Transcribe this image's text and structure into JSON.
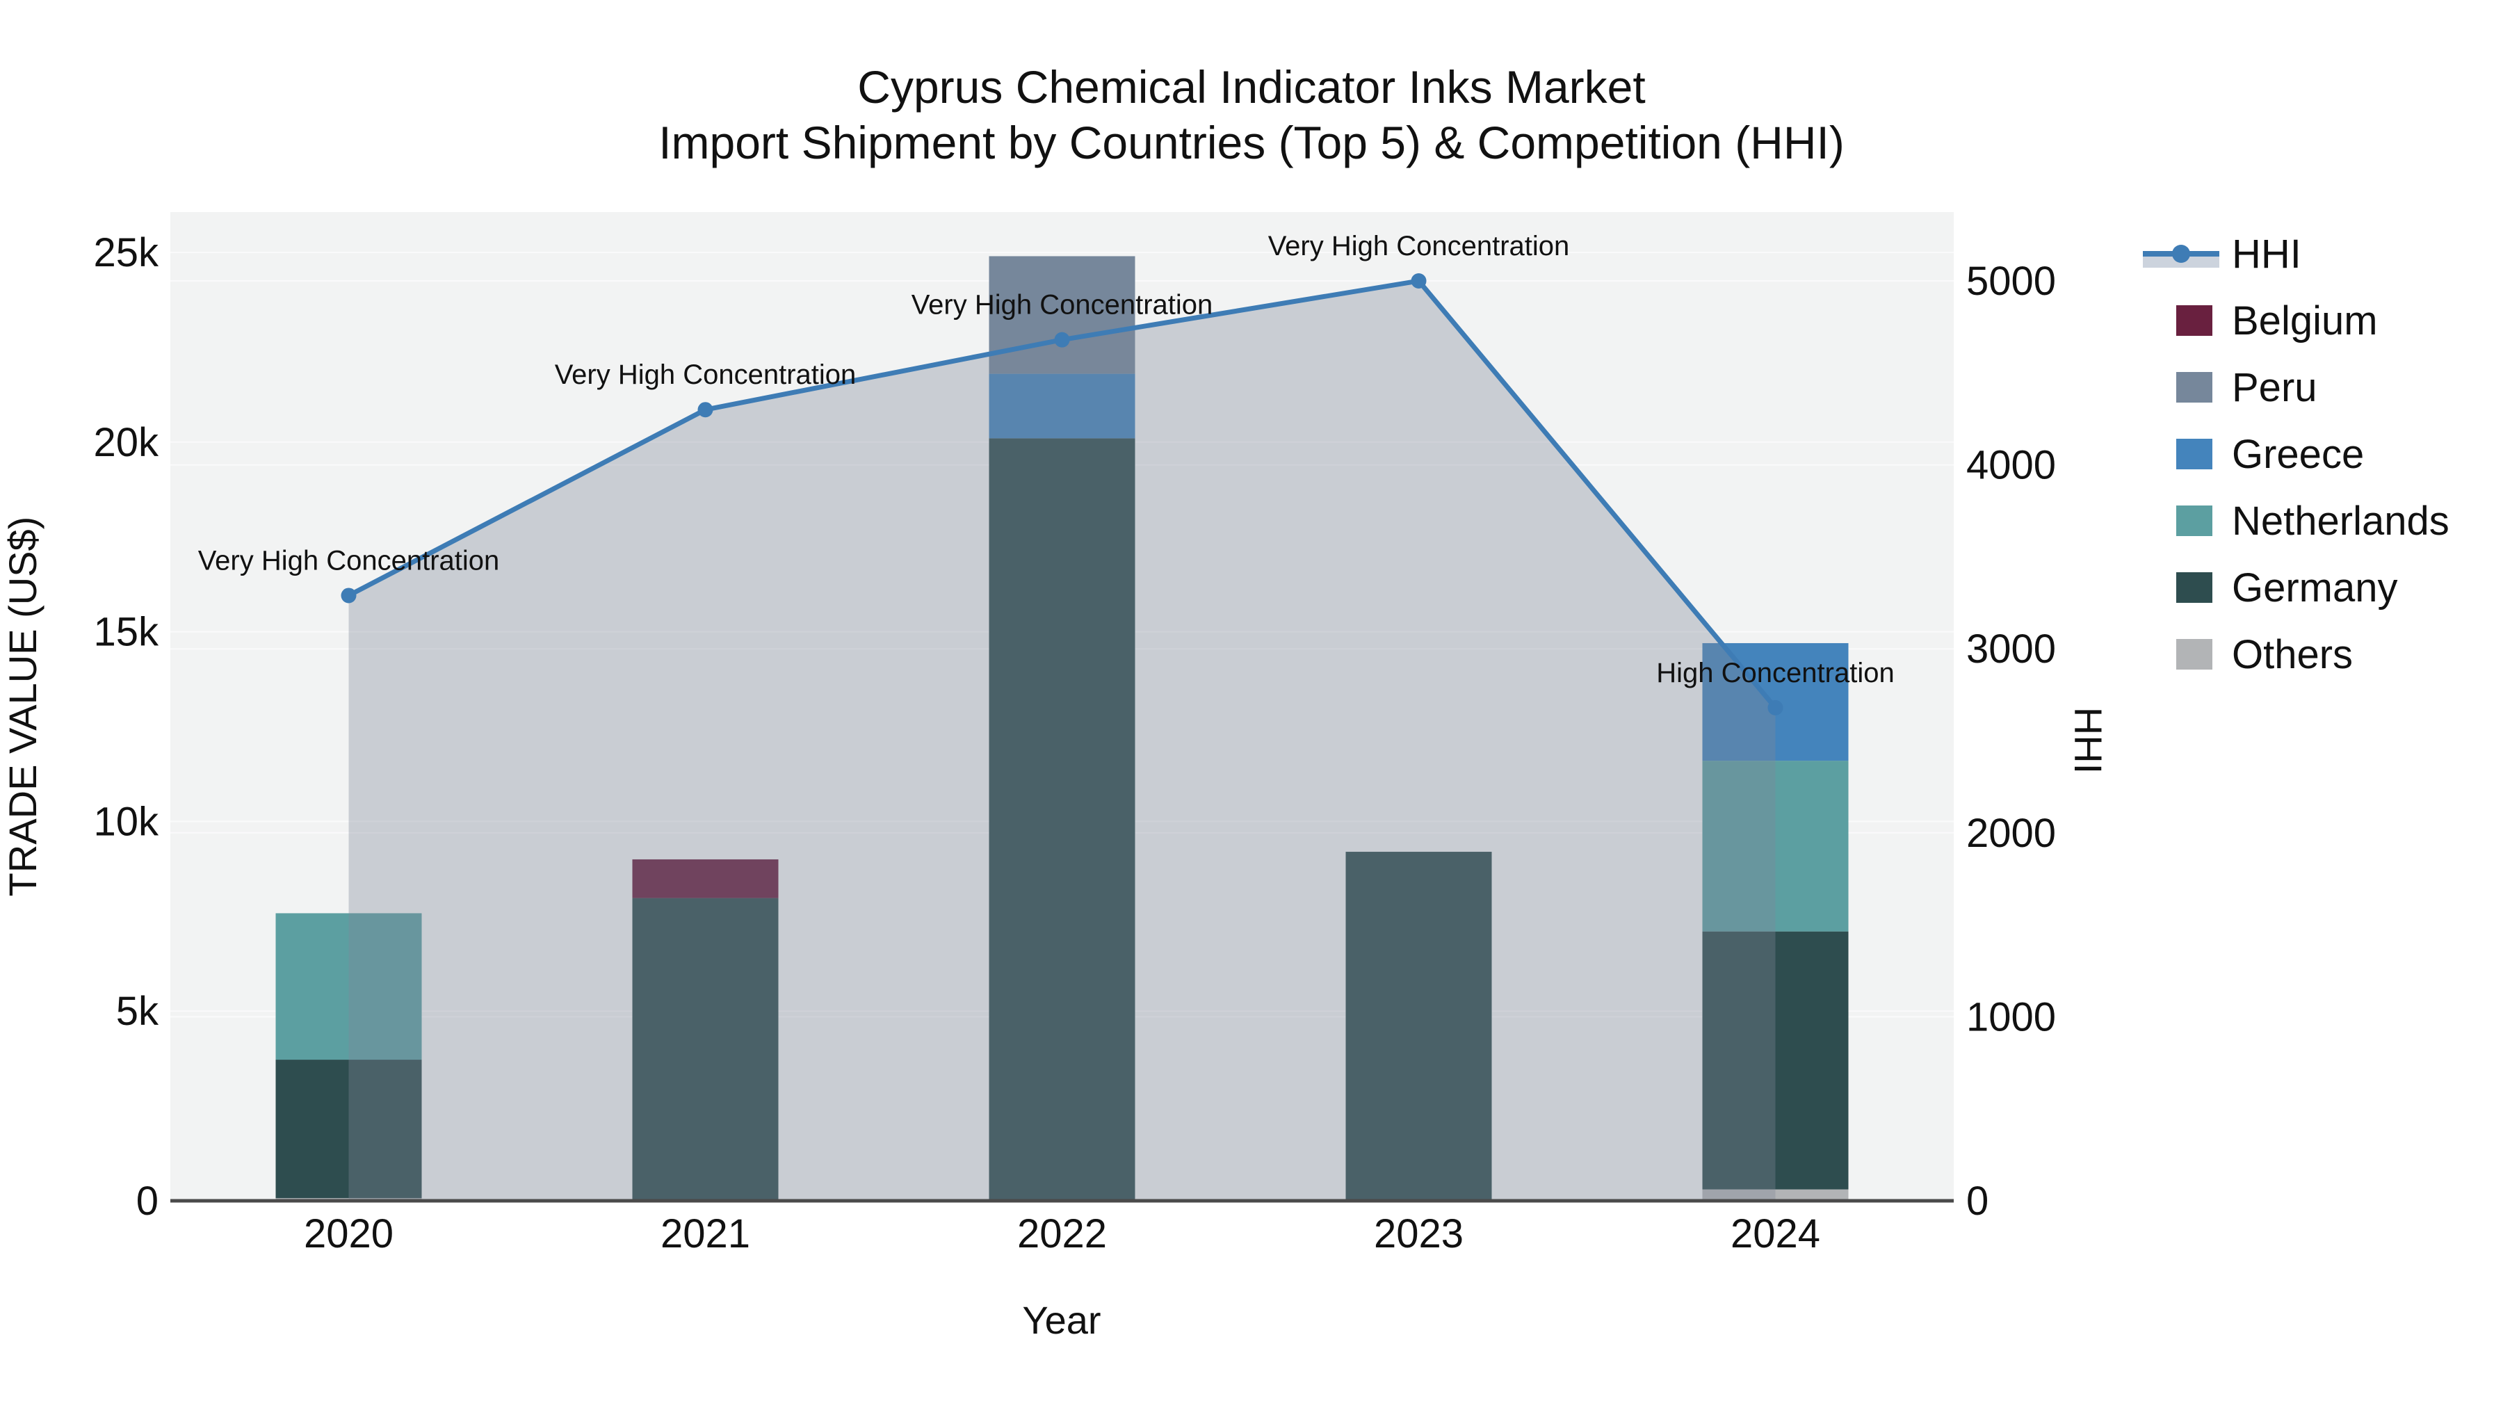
{
  "title": {
    "line1": "Cyprus Chemical Indicator Inks Market",
    "line2": "Import Shipment by Countries (Top 5) & Competition (HHI)"
  },
  "axes": {
    "x": {
      "title": "Year",
      "ticks": [
        "2020",
        "2021",
        "2022",
        "2023",
        "2024"
      ]
    },
    "y_left": {
      "title": "TRADE VALUE (US$)",
      "tick_labels": [
        "0",
        "5k",
        "10k",
        "15k",
        "20k",
        "25k"
      ],
      "tick_values": [
        0,
        5000,
        10000,
        15000,
        20000,
        25000
      ],
      "max": 25000
    },
    "y_right": {
      "title": "HHI",
      "tick_labels": [
        "0",
        "1000",
        "2000",
        "3000",
        "4000",
        "5000"
      ],
      "tick_values": [
        0,
        1000,
        2000,
        3000,
        4000,
        5000
      ],
      "max": 5000
    }
  },
  "legend": {
    "items": [
      {
        "label": "HHI",
        "type": "line"
      },
      {
        "label": "Belgium",
        "type": "swatch"
      },
      {
        "label": "Peru",
        "type": "swatch"
      },
      {
        "label": "Greece",
        "type": "swatch"
      },
      {
        "label": "Netherlands",
        "type": "swatch"
      },
      {
        "label": "Germany",
        "type": "swatch"
      },
      {
        "label": "Others",
        "type": "swatch"
      }
    ]
  },
  "annotations": [
    {
      "index": 0,
      "text": "Very High Concentration"
    },
    {
      "index": 1,
      "text": "Very High Concentration"
    },
    {
      "index": 2,
      "text": "Very High Concentration"
    },
    {
      "index": 3,
      "text": "Very High Concentration"
    },
    {
      "index": 4,
      "text": "High Concentration"
    }
  ],
  "chart_data": {
    "type": "bar+line",
    "categories": [
      "2020",
      "2021",
      "2022",
      "2023",
      "2024"
    ],
    "stack_order": "bottom_to_top",
    "bar_series": [
      {
        "name": "Others",
        "color": "#B2B4B6",
        "values": [
          70,
          0,
          0,
          0,
          300
        ]
      },
      {
        "name": "Germany",
        "color": "#2E4D4F",
        "values": [
          3650,
          7980,
          20100,
          9200,
          6800
        ]
      },
      {
        "name": "Netherlands",
        "color": "#5C9FA1",
        "values": [
          3860,
          0,
          0,
          0,
          4500
        ]
      },
      {
        "name": "Greece",
        "color": "#4484BC",
        "values": [
          0,
          0,
          1700,
          0,
          3100
        ]
      },
      {
        "name": "Peru",
        "color": "#76879B",
        "values": [
          0,
          0,
          3100,
          0,
          0
        ]
      },
      {
        "name": "Belgium",
        "color": "#69203F",
        "values": [
          0,
          1020,
          0,
          0,
          0
        ]
      }
    ],
    "bar_totals": [
      7580,
      9000,
      24900,
      9200,
      14700
    ],
    "line_series": {
      "name": "HHI",
      "axis": "right",
      "values": [
        3290,
        4300,
        4680,
        5000,
        2680
      ],
      "fill": "to_zero"
    },
    "title": "Cyprus Chemical Indicator Inks Market — Import Shipment by Countries (Top 5) & Competition (HHI)",
    "xlabel": "Year",
    "ylabel_left": "TRADE VALUE (US$)",
    "ylabel_right": "HHI",
    "ylim_left": [
      0,
      25000
    ],
    "ylim_right": [
      0,
      5000
    ],
    "grid": true,
    "legend_position": "right"
  },
  "colors": {
    "background": "#FFFFFF",
    "plot_bg": "#F2F3F3",
    "grid": "#FAFAFB",
    "axis_line": "#4A4A4A",
    "text": "#111111",
    "hhi_line": "#3E7CB5",
    "area_fill": "#7D8698",
    "area_fill_opacity": 0.35,
    "legend_hhi_fill": "#CCD3DD"
  }
}
